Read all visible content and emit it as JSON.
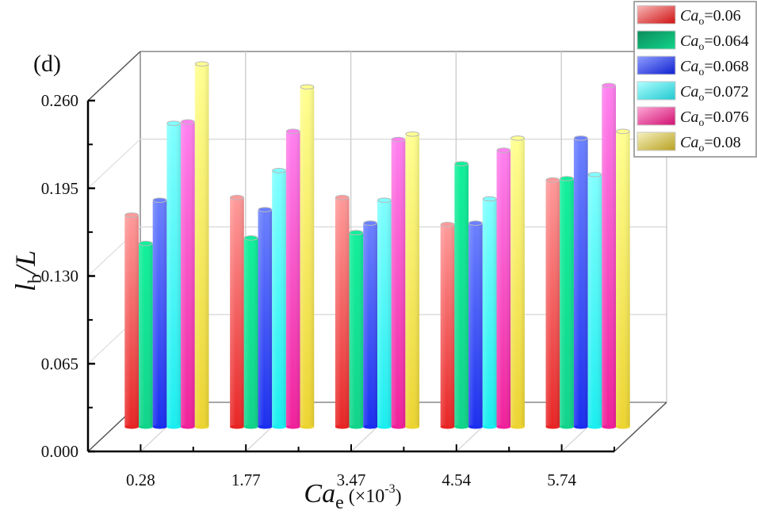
{
  "panel_label": "(d)",
  "chart_data": {
    "type": "bar",
    "style": "3d-cylinder",
    "title": "",
    "xlabel": {
      "main": "Ca",
      "subscript": "e",
      "suffix": " (×10",
      "exponent": "-3",
      "close": ")"
    },
    "ylabel": {
      "main": "l",
      "subscript": "b",
      "suffix": "/L"
    },
    "categories": [
      "0.28",
      "1.77",
      "3.47",
      "4.54",
      "5.74"
    ],
    "ylim": [
      0.0,
      0.26
    ],
    "yticks": [
      "0.000",
      "0.065",
      "0.130",
      "0.195",
      "0.260"
    ],
    "ytick_values": [
      0.0,
      0.065,
      0.13,
      0.195,
      0.26
    ],
    "grid": true,
    "legend_position": "top-right",
    "series": [
      {
        "name": "Ca_o=0.06",
        "label_main": "Ca",
        "label_sub": "o",
        "label_value": "=0.06",
        "color_top": "#ff9a9a",
        "color_bottom": "#e82424",
        "legend_from": "#f7b9b9",
        "legend_to": "#d01010",
        "values": [
          0.157,
          0.17,
          0.17,
          0.15,
          0.183
        ]
      },
      {
        "name": "Ca_o=0.064",
        "label_main": "Ca",
        "label_sub": "o",
        "label_value": "=0.064",
        "color_top": "#10f09a",
        "color_bottom": "#10d48a",
        "legend_from": "#0c8c5a",
        "legend_to": "#12d48a",
        "values": [
          0.136,
          0.14,
          0.144,
          0.195,
          0.184
        ]
      },
      {
        "name": "Ca_o=0.068",
        "label_main": "Ca",
        "label_sub": "o",
        "label_value": "=0.068",
        "color_top": "#6a80ff",
        "color_bottom": "#1a2ef0",
        "legend_from": "#8fa0ff",
        "legend_to": "#1020d0",
        "values": [
          0.168,
          0.161,
          0.151,
          0.151,
          0.214
        ]
      },
      {
        "name": "Ca_o=0.072",
        "label_main": "Ca",
        "label_sub": "o",
        "label_value": "=0.072",
        "color_top": "#80ffff",
        "color_bottom": "#1aeef0",
        "legend_from": "#b0ffff",
        "legend_to": "#20c8d0",
        "values": [
          0.225,
          0.19,
          0.168,
          0.169,
          0.187
        ]
      },
      {
        "name": "Ca_o=0.076",
        "label_main": "Ca",
        "label_sub": "o",
        "label_value": "=0.076",
        "color_top": "#ff80f0",
        "color_bottom": "#f0209a",
        "legend_from": "#ffa8d8",
        "legend_to": "#d01070",
        "values": [
          0.226,
          0.219,
          0.213,
          0.205,
          0.253
        ]
      },
      {
        "name": "Ca_o=0.08",
        "label_main": "Ca",
        "label_sub": "o",
        "label_value": "=0.08",
        "color_top": "#ffff90",
        "color_bottom": "#ecd430",
        "legend_from": "#f6f2c0",
        "legend_to": "#b8a020",
        "values": [
          0.269,
          0.252,
          0.217,
          0.214,
          0.219
        ]
      }
    ]
  }
}
